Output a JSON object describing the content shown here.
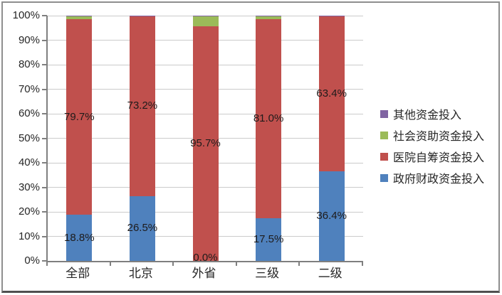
{
  "chart_data": {
    "type": "bar",
    "subtype": "100%-stacked-column",
    "title": "",
    "categories": [
      "全部",
      "北京",
      "外省",
      "三级",
      "二级"
    ],
    "series": [
      {
        "name": "政府财政资金投入",
        "color": "#4F81BD",
        "values": [
          18.8,
          26.5,
          0.0,
          17.5,
          36.4
        ],
        "data_labels": [
          "18.8%",
          "26.5%",
          "0.0%",
          "17.5%",
          "36.4%"
        ]
      },
      {
        "name": "医院自筹资金投入",
        "color": "#C0504D",
        "values": [
          79.7,
          73.2,
          95.7,
          81.0,
          63.4
        ],
        "data_labels": [
          "79.7%",
          "73.2%",
          "95.7%",
          "81.0%",
          "63.4%"
        ]
      },
      {
        "name": "社会资助资金投入",
        "color": "#9BBB59",
        "values": [
          1.4,
          0.2,
          4.2,
          1.4,
          0.1
        ],
        "data_labels": null
      },
      {
        "name": "其他资金投入",
        "color": "#8064A2",
        "values": [
          0.1,
          0.1,
          0.1,
          0.1,
          0.1
        ],
        "data_labels": null
      }
    ],
    "y_axis": {
      "min": 0,
      "max": 100,
      "tick_step": 10,
      "tick_labels": [
        "0%",
        "10%",
        "20%",
        "30%",
        "40%",
        "50%",
        "60%",
        "70%",
        "80%",
        "90%",
        "100%"
      ]
    },
    "legend": {
      "position": "right",
      "order": "reversed-series",
      "entries": [
        "其他资金投入",
        "社会资助资金投入",
        "医院自筹资金投入",
        "政府财政资金投入"
      ]
    },
    "grid": true,
    "label_color": "#1e1b1b",
    "gridline_color": "#cbcbcb",
    "axis_color": "#7f7f7f"
  }
}
